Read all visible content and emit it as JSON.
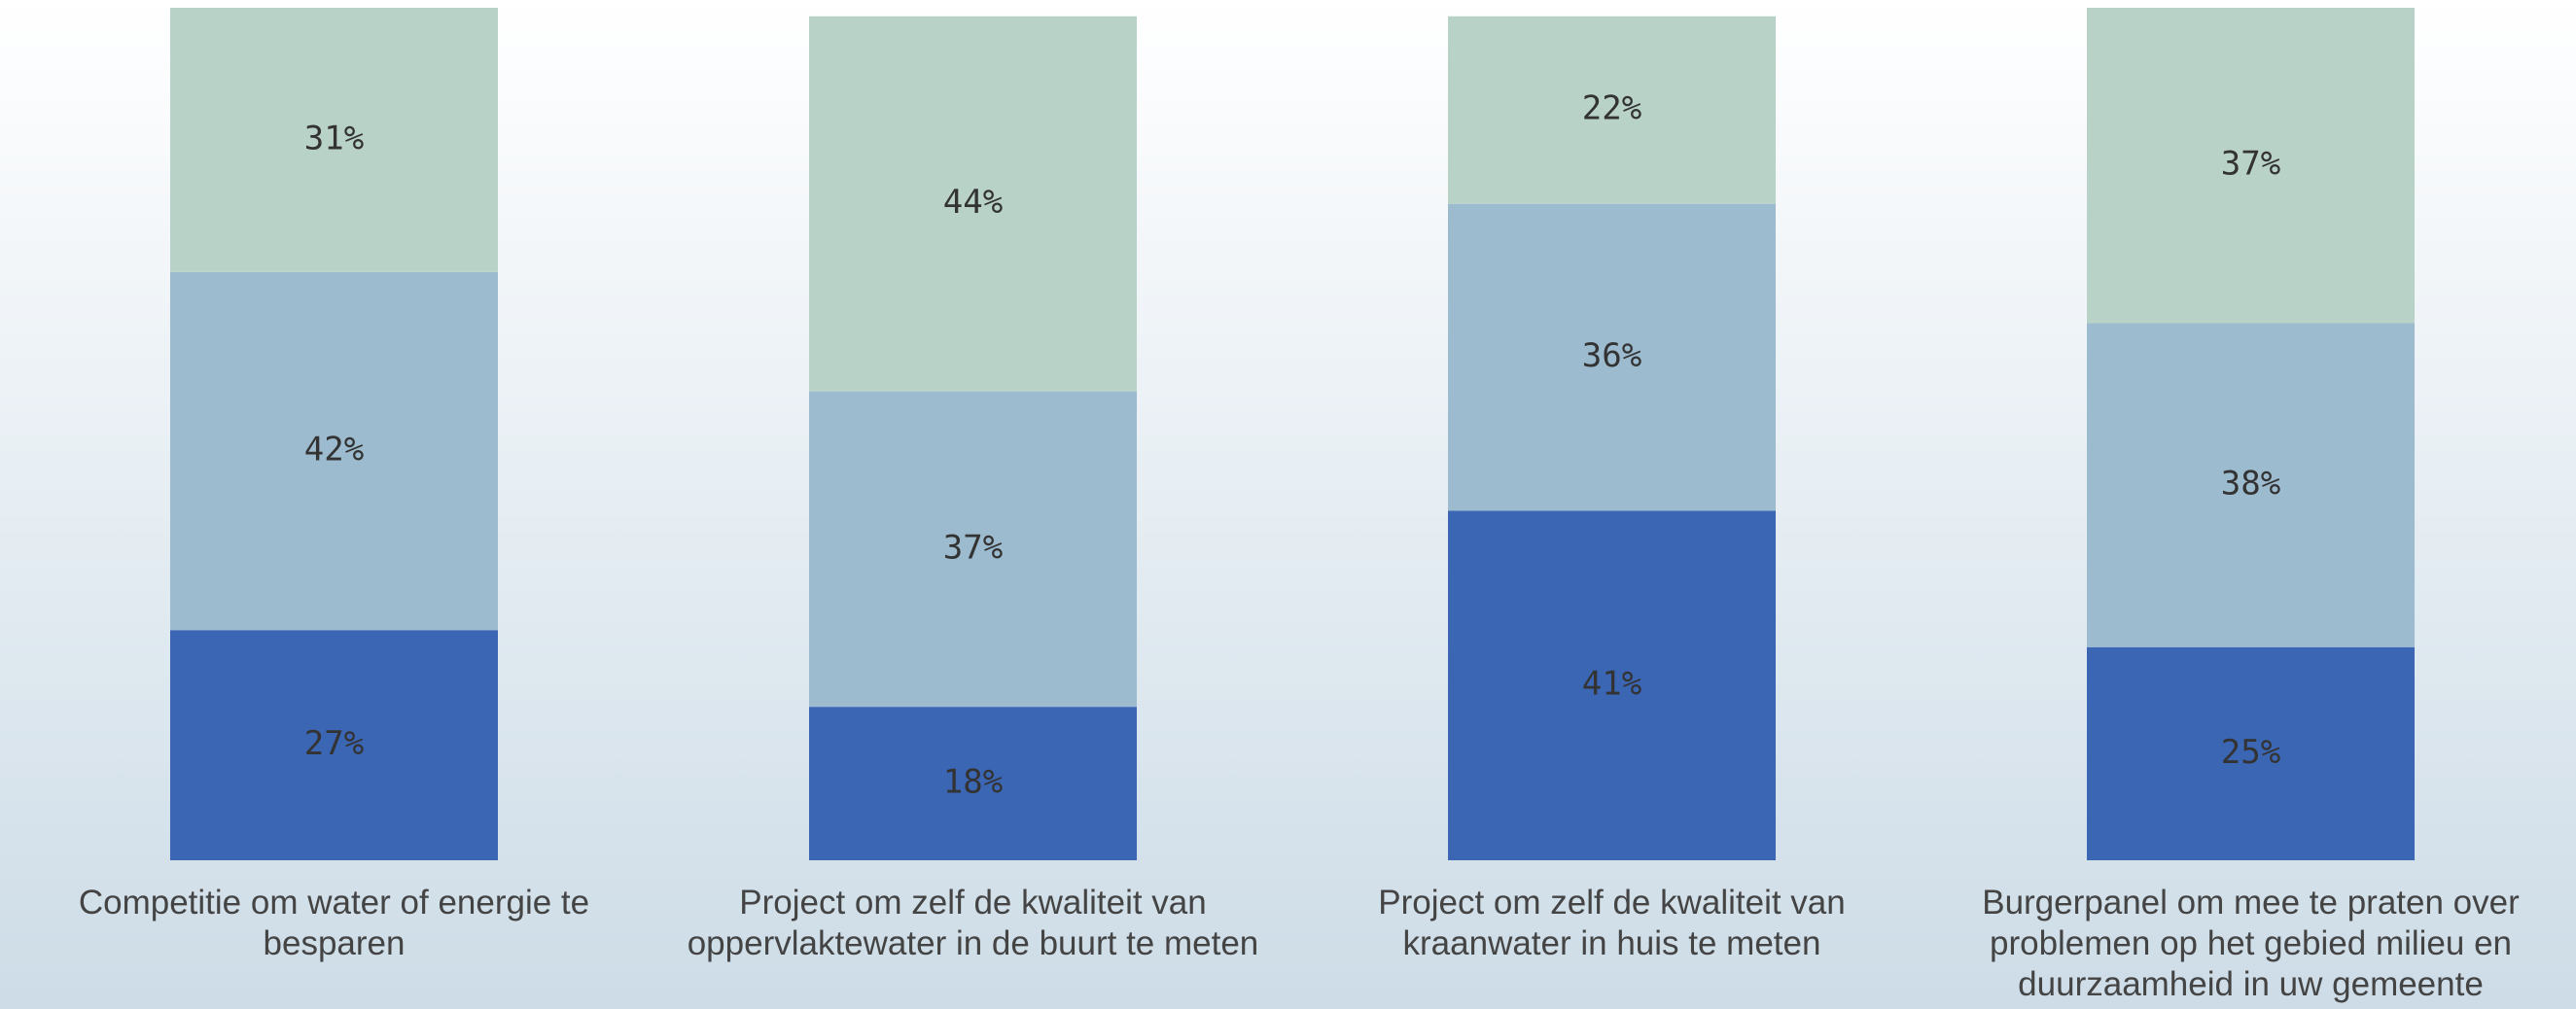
{
  "chart_data": {
    "type": "stacked_bar",
    "categories": [
      "Competitie om water of energie te besparen",
      "Project om zelf de kwaliteit van oppervlaktewater in de buurt te meten",
      "Project om zelf de kwaliteit van kraanwater in huis te meten",
      "Burgerpanel om mee te praten over problemen op het gebied milieu en duurzaamheid in uw gemeente"
    ],
    "series": [
      {
        "color": "#3b66b4",
        "values": [
          27,
          18,
          41,
          25
        ],
        "value_labels": [
          "27%",
          "18%",
          "41%",
          "25%"
        ]
      },
      {
        "color": "#9cbbcf",
        "values": [
          42,
          37,
          36,
          38
        ],
        "value_labels": [
          "42%",
          "37%",
          "36%",
          "38%"
        ]
      },
      {
        "color": "#b9d2c8",
        "values": [
          31,
          44,
          22,
          37
        ],
        "value_labels": [
          "31%",
          "44%",
          "22%",
          "37%"
        ]
      }
    ],
    "ylim": [
      0,
      100
    ]
  }
}
